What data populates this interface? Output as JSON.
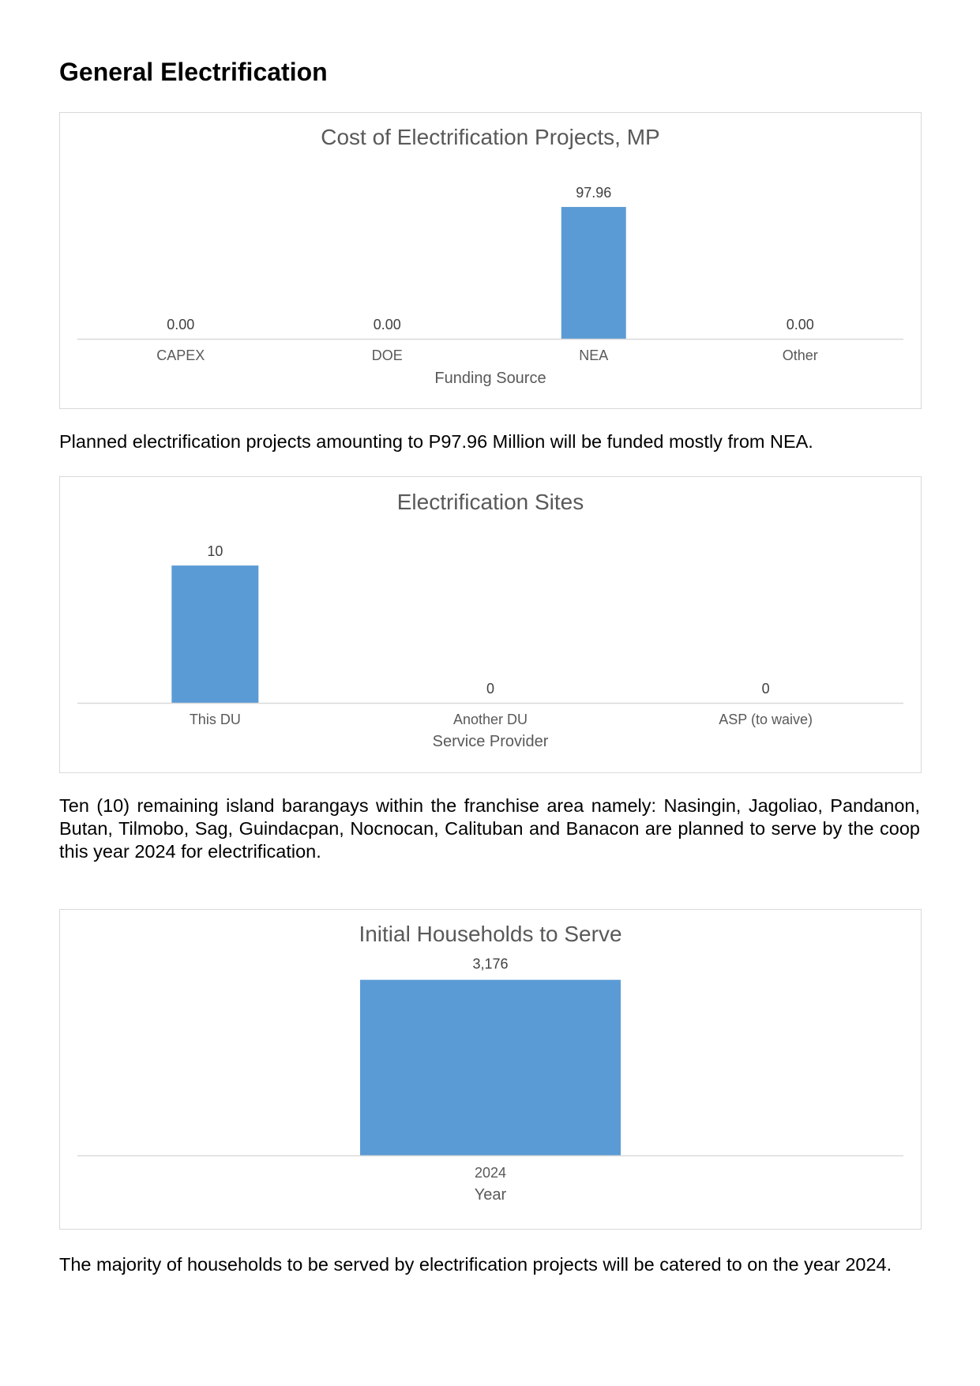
{
  "heading": "General Electrification",
  "paragraphs": [
    "Planned electrification projects amounting to P97.96 Million will be funded mostly from NEA.",
    "Ten (10) remaining island barangays within the franchise area namely: Nasingin, Jagoliao, Pandanon, Butan, Tilmobo, Sag, Guindacpan, Nocnocan, Calituban and Banacon are planned to serve by the coop this year 2024 for electrification.",
    "The majority of households to be served by electrification projects will be catered to on the year 2024."
  ],
  "colors": {
    "bar": "#5b9bd5",
    "axis": "#d9d9d9",
    "title": "#595959",
    "label": "#404040"
  },
  "chart_data": [
    {
      "type": "bar",
      "title": "Cost of Electrification Projects, MP",
      "xlabel": "Funding Source",
      "ylabel": "",
      "categories": [
        "CAPEX",
        "DOE",
        "NEA",
        "Other"
      ],
      "values": [
        0.0,
        0.0,
        97.96,
        0.0
      ],
      "data_labels": [
        "0.00",
        "0.00",
        "97.96",
        "0.00"
      ],
      "ylim": [
        0,
        115
      ],
      "grid": false,
      "legend": "none"
    },
    {
      "type": "bar",
      "title": "Electrification Sites",
      "xlabel": "Service Provider",
      "ylabel": "",
      "categories": [
        "This DU",
        "Another DU",
        "ASP (to waive)"
      ],
      "values": [
        10,
        0,
        0
      ],
      "data_labels": [
        "10",
        "0",
        "0"
      ],
      "ylim": [
        0,
        11.5
      ],
      "grid": false,
      "legend": "none"
    },
    {
      "type": "bar",
      "title": "Initial Households to Serve",
      "xlabel": "Year",
      "ylabel": "",
      "categories": [
        "2024"
      ],
      "values": [
        3176
      ],
      "data_labels": [
        "3,176"
      ],
      "ylim": [
        0,
        3300
      ],
      "grid": false,
      "legend": "none"
    }
  ]
}
